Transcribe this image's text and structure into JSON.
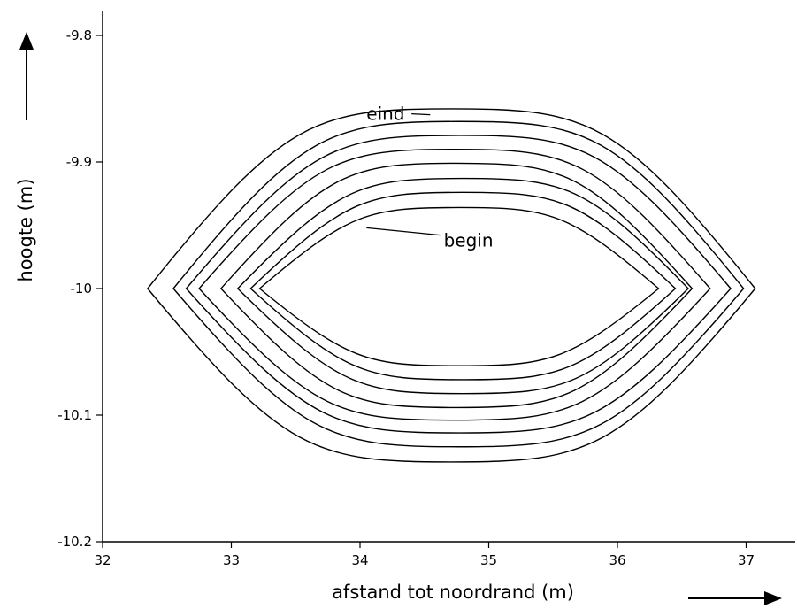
{
  "chart_data": {
    "type": "line",
    "title": "",
    "xlabel": "afstand tot noordrand (m)",
    "ylabel": "hoogte (m)",
    "xlim": [
      32,
      37.4
    ],
    "ylim": [
      -10.2,
      -9.79
    ],
    "x_ticks": [
      32,
      33,
      34,
      35,
      36,
      37
    ],
    "x_tick_labels": [
      "32",
      "33",
      "34",
      "35",
      "36",
      "37"
    ],
    "y_ticks": [
      -9.8,
      -9.9,
      -10,
      -10.1,
      -10.2
    ],
    "y_tick_labels": [
      "-9.8",
      "-9.9",
      "-10",
      "-10.1",
      "-10.2"
    ],
    "grid": false,
    "line_color": "#000000",
    "axis_arrows": {
      "x": "right",
      "y": "up"
    },
    "series": [
      {
        "x_left": 33.22,
        "x_right": 36.32,
        "x_apex": 34.77,
        "y_top": -9.936,
        "y_bottom": -10.061
      },
      {
        "x_left": 33.15,
        "x_right": 36.45,
        "x_apex": 34.8,
        "y_top": -9.924,
        "y_bottom": -10.072
      },
      {
        "x_left": 33.05,
        "x_right": 36.55,
        "x_apex": 34.8,
        "y_top": -9.913,
        "y_bottom": -10.083
      },
      {
        "x_left": 32.92,
        "x_right": 36.58,
        "x_apex": 34.75,
        "y_top": -9.901,
        "y_bottom": -10.094
      },
      {
        "x_left": 32.75,
        "x_right": 36.72,
        "x_apex": 34.74,
        "y_top": -9.89,
        "y_bottom": -10.104
      },
      {
        "x_left": 32.65,
        "x_right": 36.88,
        "x_apex": 34.77,
        "y_top": -9.879,
        "y_bottom": -10.114
      },
      {
        "x_left": 32.55,
        "x_right": 36.98,
        "x_apex": 34.77,
        "y_top": -9.868,
        "y_bottom": -10.125
      },
      {
        "x_left": 32.35,
        "x_right": 37.07,
        "x_apex": 34.71,
        "y_top": -9.858,
        "y_bottom": -10.137
      }
    ],
    "annotations": [
      {
        "text": "eind",
        "x": 34.05,
        "y": -9.862,
        "pointer_to": [
          34.4,
          -9.862
        ]
      },
      {
        "text": "begin",
        "x": 34.65,
        "y": -9.962,
        "pointer_to": [
          34.05,
          -9.952
        ]
      }
    ]
  }
}
